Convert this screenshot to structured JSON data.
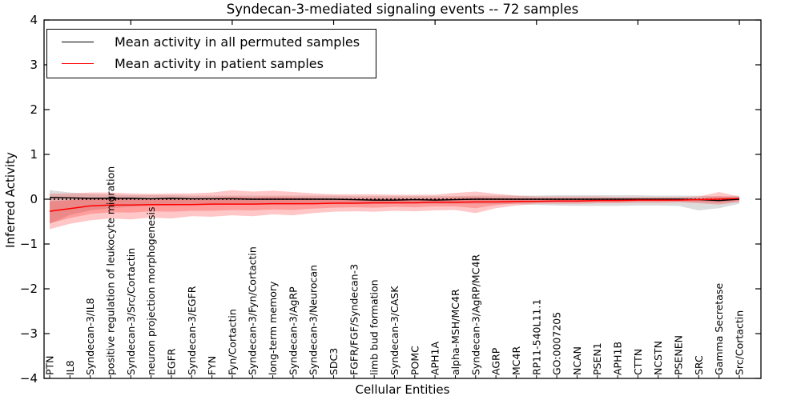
{
  "figure": {
    "title": "Syndecan-3-mediated signaling events -- 72 samples",
    "xlabel": "Cellular Entities",
    "ylabel": "Inferred Activity"
  },
  "legend": {
    "entries": [
      {
        "label": "Mean activity in all permuted samples",
        "color": "#000000"
      },
      {
        "label": "Mean activity in patient samples",
        "color": "#ff0000"
      }
    ]
  },
  "chart_data": {
    "type": "line",
    "title": "Syndecan-3-mediated signaling events -- 72 samples",
    "xlabel": "Cellular Entities",
    "ylabel": "Inferred Activity",
    "ylim": [
      -4,
      4
    ],
    "yticks": [
      -4,
      -3,
      -2,
      -1,
      0,
      1,
      2,
      3,
      4
    ],
    "grid": false,
    "legend_position": "upper left",
    "zero_line": {
      "y": 0,
      "style": "dotted",
      "color": "#000000"
    },
    "categories": [
      "PTN",
      "IL8",
      "Syndecan-3/IL8",
      "positive regulation of leukocyte migration",
      "Syndecan-3/Src/Cortactin",
      "neuron projection morphogenesis",
      "EGFR",
      "Syndecan-3/EGFR",
      "FYN",
      "Fyn/Cortactin",
      "Syndecan-3/Fyn/Cortactin",
      "long-term memory",
      "Syndecan-3/AgRP",
      "Syndecan-3/Neurocan",
      "SDC3",
      "FGFR/FGF/Syndecan-3",
      "limb bud formation",
      "Syndecan-3/CASK",
      "POMC",
      "APH1A",
      "alpha-MSH/MC4R",
      "Syndecan-3/AgRP/MC4R",
      "AGRP",
      "MC4R",
      "RP11-540L11.1",
      "GO:0007205",
      "NCAN",
      "PSEN1",
      "APH1B",
      "CTTN",
      "NCSTN",
      "PSENEN",
      "SRC",
      "Gamma Secretase",
      "Src/Cortactin"
    ],
    "series": [
      {
        "name": "Mean activity in all permuted samples",
        "color": "#000000",
        "values": [
          0.04,
          0.03,
          0.02,
          0.02,
          0.02,
          0.01,
          0.02,
          0.01,
          0.01,
          0.01,
          0.0,
          0.0,
          0.0,
          0.0,
          0.0,
          -0.01,
          -0.02,
          -0.02,
          -0.01,
          -0.02,
          -0.01,
          0.0,
          0.0,
          0.0,
          0.0,
          0.0,
          0.0,
          0.0,
          0.0,
          0.0,
          0.0,
          0.0,
          -0.01,
          -0.03,
          0.0
        ],
        "band_upper": [
          0.2,
          0.15,
          0.12,
          0.1,
          0.09,
          0.09,
          0.09,
          0.08,
          0.08,
          0.08,
          0.08,
          0.08,
          0.08,
          0.08,
          0.08,
          0.07,
          0.07,
          0.07,
          0.07,
          0.07,
          0.07,
          0.08,
          0.08,
          0.08,
          0.08,
          0.09,
          0.09,
          0.09,
          0.09,
          0.09,
          0.08,
          0.08,
          0.08,
          0.06,
          0.08
        ],
        "band_lower": [
          -0.55,
          -0.35,
          -0.25,
          -0.2,
          -0.17,
          -0.15,
          -0.14,
          -0.13,
          -0.13,
          -0.12,
          -0.12,
          -0.12,
          -0.12,
          -0.11,
          -0.11,
          -0.11,
          -0.11,
          -0.1,
          -0.1,
          -0.1,
          -0.1,
          -0.1,
          -0.1,
          -0.11,
          -0.13,
          -0.14,
          -0.15,
          -0.15,
          -0.15,
          -0.14,
          -0.14,
          -0.15,
          -0.25,
          -0.2,
          -0.1
        ],
        "band_fill": "rgba(130,130,130,0.28)"
      },
      {
        "name": "Mean activity in patient samples",
        "color": "#ff0000",
        "values": [
          -0.27,
          -0.21,
          -0.15,
          -0.13,
          -0.13,
          -0.12,
          -0.12,
          -0.12,
          -0.11,
          -0.11,
          -0.11,
          -0.1,
          -0.1,
          -0.1,
          -0.09,
          -0.09,
          -0.08,
          -0.08,
          -0.08,
          -0.07,
          -0.07,
          -0.06,
          -0.06,
          -0.05,
          -0.05,
          -0.04,
          -0.04,
          -0.03,
          -0.03,
          -0.02,
          -0.02,
          -0.02,
          -0.01,
          0.0,
          0.02
        ],
        "band_upper": [
          0.12,
          0.13,
          0.15,
          0.15,
          0.13,
          0.12,
          0.13,
          0.13,
          0.15,
          0.2,
          0.17,
          0.19,
          0.16,
          0.13,
          0.11,
          0.11,
          0.11,
          0.1,
          0.1,
          0.1,
          0.14,
          0.17,
          0.12,
          0.08,
          0.06,
          0.06,
          0.06,
          0.06,
          0.05,
          0.05,
          0.05,
          0.05,
          0.06,
          0.16,
          0.06
        ],
        "band_lower": [
          -0.67,
          -0.55,
          -0.47,
          -0.43,
          -0.45,
          -0.41,
          -0.43,
          -0.38,
          -0.39,
          -0.36,
          -0.38,
          -0.34,
          -0.36,
          -0.31,
          -0.28,
          -0.27,
          -0.28,
          -0.26,
          -0.27,
          -0.25,
          -0.24,
          -0.31,
          -0.2,
          -0.14,
          -0.1,
          -0.1,
          -0.1,
          -0.09,
          -0.09,
          -0.08,
          -0.08,
          -0.07,
          -0.09,
          -0.12,
          -0.06
        ],
        "inner_band_upper": [
          -0.05,
          -0.02,
          0.02,
          0.03,
          0.02,
          0.02,
          0.02,
          0.02,
          0.03,
          0.05,
          0.04,
          0.05,
          0.04,
          0.03,
          0.02,
          0.02,
          0.02,
          0.02,
          0.02,
          0.02,
          0.04,
          0.05,
          0.03,
          0.02,
          0.01,
          0.01,
          0.01,
          0.01,
          0.01,
          0.01,
          0.01,
          0.01,
          0.02,
          0.07,
          0.02
        ],
        "inner_band_lower": [
          -0.54,
          -0.42,
          -0.33,
          -0.29,
          -0.3,
          -0.27,
          -0.28,
          -0.26,
          -0.26,
          -0.24,
          -0.25,
          -0.23,
          -0.24,
          -0.21,
          -0.19,
          -0.18,
          -0.19,
          -0.17,
          -0.18,
          -0.16,
          -0.16,
          -0.2,
          -0.13,
          -0.09,
          -0.07,
          -0.07,
          -0.07,
          -0.06,
          -0.06,
          -0.05,
          -0.05,
          -0.05,
          -0.06,
          -0.08,
          -0.04
        ],
        "band_fill": "rgba(255,30,30,0.25)"
      }
    ],
    "top_tick_entity_indices": [
      4,
      9,
      14,
      19,
      24,
      29,
      34
    ]
  }
}
